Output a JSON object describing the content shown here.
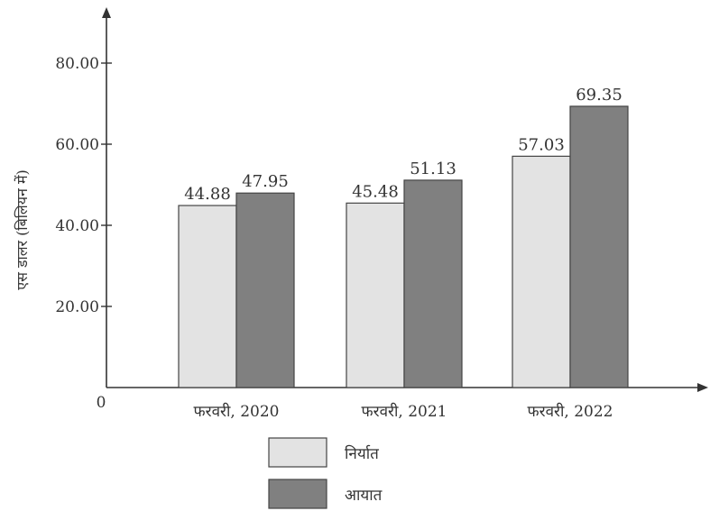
{
  "chart_data": {
    "type": "bar",
    "title": "",
    "xlabel": "",
    "ylabel": "एस डालर (बिलियन में)",
    "categories": [
      "फरवरी, 2020",
      "फरवरी, 2021",
      "फरवरी, 2022"
    ],
    "series": [
      {
        "name": "निर्यात",
        "values": [
          44.88,
          45.48,
          57.03
        ],
        "color": "#e3e3e3"
      },
      {
        "name": "आयात",
        "values": [
          47.95,
          51.13,
          69.35
        ],
        "color": "#808080"
      }
    ],
    "value_labels": [
      [
        "44.88",
        "45.48",
        "57.03"
      ],
      [
        "47.95",
        "51.13",
        "69.35"
      ]
    ],
    "yticks": [
      20,
      40,
      60,
      80
    ],
    "ytick_labels": [
      "20.00",
      "40.00",
      "60.00",
      "80.00"
    ],
    "origin_label": "0",
    "ylim": [
      0,
      80
    ],
    "grid": false,
    "legend_position": "bottom"
  }
}
